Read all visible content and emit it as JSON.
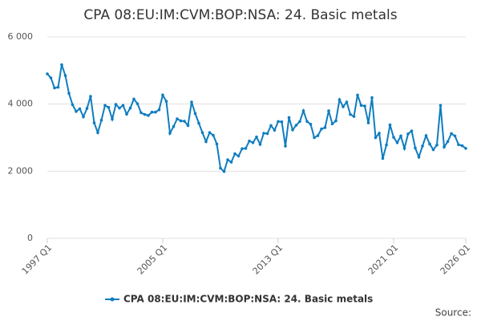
{
  "chart_data": {
    "type": "line",
    "title": "CPA 08:EU:IM:CVM:BOP:NSA: 24. Basic metals",
    "source": "Source:",
    "categories": [
      "1997 Q1",
      null,
      null,
      null,
      null,
      null,
      null,
      null,
      null,
      null,
      null,
      null,
      null,
      null,
      null,
      null,
      null,
      null,
      null,
      null,
      null,
      null,
      null,
      null,
      null,
      null,
      null,
      null,
      null,
      null,
      null,
      null,
      "2005 Q1",
      null,
      null,
      null,
      null,
      null,
      null,
      null,
      null,
      null,
      null,
      null,
      null,
      null,
      null,
      null,
      null,
      null,
      null,
      null,
      null,
      null,
      null,
      null,
      null,
      null,
      null,
      null,
      null,
      null,
      null,
      null,
      "2013 Q1",
      null,
      null,
      null,
      null,
      null,
      null,
      null,
      null,
      null,
      null,
      null,
      null,
      null,
      null,
      null,
      null,
      null,
      null,
      null,
      null,
      null,
      null,
      null,
      null,
      null,
      null,
      null,
      null,
      null,
      null,
      null,
      "2021 Q1",
      null,
      null,
      null,
      null,
      null,
      null,
      null,
      null,
      null,
      null,
      null,
      null,
      null,
      null,
      null,
      null,
      null,
      null,
      null,
      "2026 Q1"
    ],
    "series": [
      {
        "name": "CPA 08:EU:IM:CVM:BOP:NSA: 24. Basic metals",
        "color": "#0f7dc0",
        "values": [
          4900,
          4780,
          4480,
          4500,
          5170,
          4850,
          4320,
          3980,
          3780,
          3860,
          3620,
          3870,
          4230,
          3440,
          3150,
          3520,
          3960,
          3900,
          3550,
          3990,
          3880,
          3960,
          3700,
          3880,
          4150,
          4010,
          3740,
          3690,
          3660,
          3760,
          3760,
          3830,
          4270,
          4080,
          3130,
          3330,
          3560,
          3500,
          3490,
          3360,
          4060,
          3720,
          3430,
          3150,
          2880,
          3150,
          3070,
          2810,
          2090,
          1990,
          2340,
          2270,
          2520,
          2450,
          2670,
          2680,
          2900,
          2850,
          3020,
          2800,
          3130,
          3120,
          3360,
          3220,
          3480,
          3470,
          2750,
          3600,
          3230,
          3370,
          3480,
          3800,
          3480,
          3400,
          3000,
          3060,
          3260,
          3300,
          3800,
          3410,
          3500,
          4130,
          3920,
          4060,
          3690,
          3630,
          4270,
          3960,
          3940,
          3440,
          4190,
          3000,
          3130,
          2380,
          2780,
          3380,
          3010,
          2850,
          3050,
          2680,
          3110,
          3200,
          2690,
          2420,
          2750,
          3060,
          2810,
          2640,
          2780,
          3960,
          2720,
          2880,
          3120,
          3050,
          2790,
          2760,
          2680
        ]
      }
    ],
    "ylim": [
      0,
      6000
    ],
    "yticks": [
      0,
      {
        "value": 2000,
        "label": "2 000"
      },
      {
        "value": 4000,
        "label": "4 000"
      },
      {
        "value": 6000,
        "label": "6 000"
      }
    ],
    "grid": true
  }
}
